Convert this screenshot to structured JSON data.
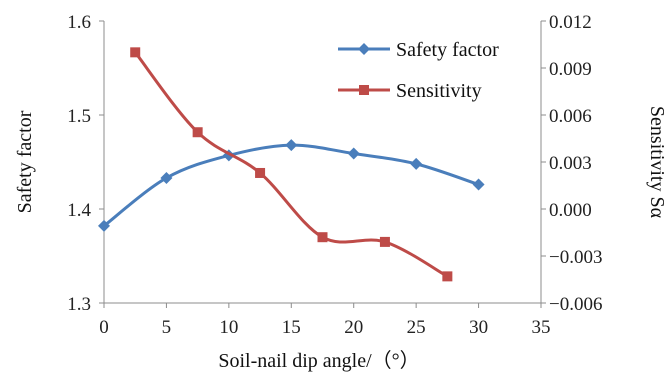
{
  "chart_data": {
    "type": "line",
    "xlabel": "Soil-nail dip angle/（°）",
    "ylabel_left": "Safety factor",
    "ylabel_right": "Sensitivity Sα",
    "xlim": [
      0,
      35
    ],
    "ylim_left": [
      1.3,
      1.6
    ],
    "ylim_right": [
      -0.006,
      0.012
    ],
    "x_ticks": [
      "0",
      "5",
      "10",
      "15",
      "20",
      "25",
      "30",
      "35"
    ],
    "y_left_ticks": [
      "1.3",
      "1.4",
      "1.5",
      "1.6"
    ],
    "y_right_ticks": [
      "−0.006",
      "−0.003",
      "0.000",
      "0.003",
      "0.006",
      "0.009",
      "0.012"
    ],
    "grid": false,
    "legend_position": "top-right",
    "series": [
      {
        "name": "Safety factor",
        "axis": "left",
        "color": "#4a7ebb",
        "marker": "diamond",
        "x": [
          0,
          5,
          10,
          15,
          20,
          25,
          30
        ],
        "y": [
          1.382,
          1.433,
          1.457,
          1.468,
          1.459,
          1.448,
          1.426
        ]
      },
      {
        "name": "Sensitivity",
        "axis": "right",
        "color": "#be4b48",
        "marker": "square",
        "x": [
          2.5,
          7.5,
          12.5,
          17.5,
          22.5,
          27.5
        ],
        "y": [
          0.01,
          0.0049,
          0.0023,
          -0.0018,
          -0.0021,
          -0.0043
        ]
      }
    ]
  }
}
